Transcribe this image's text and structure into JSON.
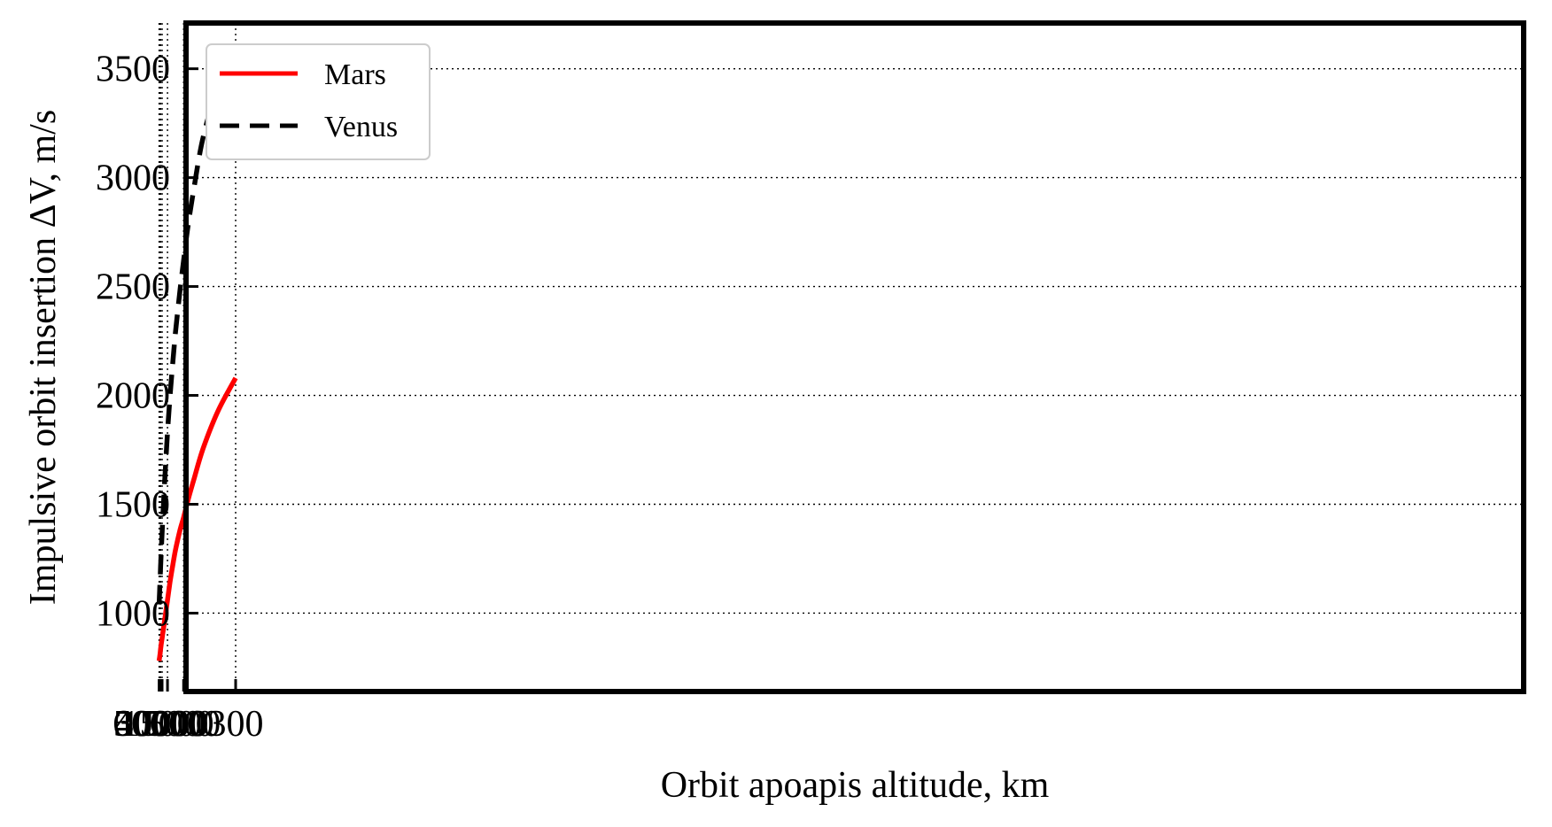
{
  "chart_data": {
    "type": "line",
    "title": "",
    "xlabel": "Orbit apoapis altitude, km",
    "ylabel": "Impulsive orbit insertion ΔV, m/s",
    "x_ticks": [
      "60000",
      "50000",
      "40000",
      "30000",
      "15000",
      "5000",
      "300"
    ],
    "y_ticks": [
      "1000",
      "1500",
      "2000",
      "2500",
      "3000",
      "3500"
    ],
    "ylim": [
      640,
      3710
    ],
    "x_axis_reversed": true,
    "x_axis_scale": "reciprocal",
    "grid": true,
    "grid_style": "dotted",
    "legend_position": "top-left",
    "series": [
      {
        "name": "Mars",
        "color": "#ff0000",
        "dash": "solid",
        "x": [
          60000,
          55000,
          50000,
          45000,
          40000,
          35000,
          30000,
          25000,
          20000,
          15000,
          12000,
          10000,
          8000,
          6000,
          5000,
          4000,
          3000,
          2000,
          1000,
          300
        ],
        "y": [
          780,
          790,
          800,
          815,
          835,
          858,
          885,
          922,
          975,
          1060,
          1140,
          1205,
          1290,
          1385,
          1440,
          1520,
          1620,
          1760,
          1930,
          2080
        ]
      },
      {
        "name": "Venus",
        "color": "#000000",
        "dash": "dashed",
        "x": [
          60000,
          55000,
          50000,
          45000,
          40000,
          35000,
          30000,
          25000,
          20000,
          15000,
          12000,
          10000,
          8000,
          6000,
          5000,
          4000,
          3000,
          2000,
          1000,
          300
        ],
        "y": [
          1040,
          1070,
          1110,
          1155,
          1215,
          1285,
          1370,
          1480,
          1620,
          1830,
          1990,
          2120,
          2290,
          2490,
          2620,
          2780,
          2960,
          3190,
          3420,
          3590
        ]
      }
    ]
  }
}
